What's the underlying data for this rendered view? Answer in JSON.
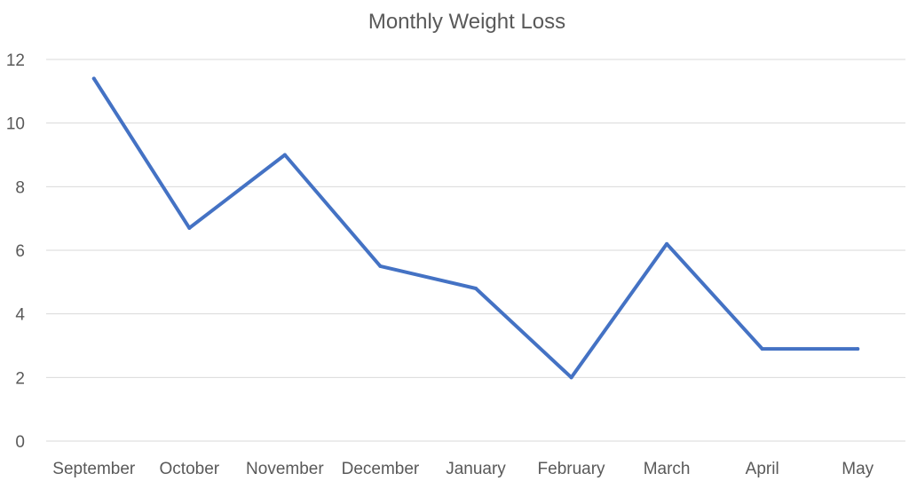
{
  "chart_data": {
    "type": "line",
    "title": "Monthly Weight Loss",
    "xlabel": "",
    "ylabel": "",
    "categories": [
      "September",
      "October",
      "November",
      "December",
      "January",
      "February",
      "March",
      "April",
      "May"
    ],
    "series": [
      {
        "values": [
          11.4,
          6.7,
          9.0,
          5.5,
          4.8,
          2.0,
          6.2,
          2.9,
          2.9
        ],
        "color": "#4472c4"
      }
    ],
    "ylim": [
      0,
      12
    ],
    "yticks": [
      0,
      2,
      4,
      6,
      8,
      10,
      12
    ],
    "grid": true,
    "legend": "none"
  }
}
